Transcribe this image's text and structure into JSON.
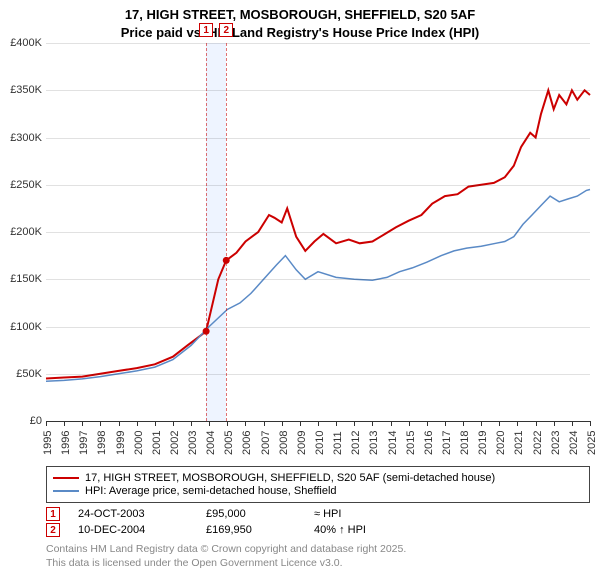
{
  "title_line1": "17, HIGH STREET, MOSBOROUGH, SHEFFIELD, S20 5AF",
  "title_line2": "Price paid vs. HM Land Registry's House Price Index (HPI)",
  "chart": {
    "type": "line",
    "x_min_year": 1995,
    "x_max_year": 2025,
    "ylim": [
      0,
      400000
    ],
    "ytick_step": 50000,
    "yticks": [
      "£0",
      "£50K",
      "£100K",
      "£150K",
      "£200K",
      "£250K",
      "£300K",
      "£350K",
      "£400K"
    ],
    "xticks": [
      1995,
      1996,
      1997,
      1998,
      1999,
      2000,
      2001,
      2002,
      2003,
      2004,
      2005,
      2006,
      2007,
      2008,
      2009,
      2010,
      2011,
      2012,
      2013,
      2014,
      2015,
      2016,
      2017,
      2018,
      2019,
      2020,
      2021,
      2022,
      2023,
      2024,
      2025
    ],
    "grid_color": "#333333",
    "background_color": "#ffffff",
    "shade_color": "#cfe0ff",
    "series": [
      {
        "name": "price_paid",
        "color": "#cc0000",
        "width": 2,
        "points": [
          [
            1995.0,
            45000
          ],
          [
            1996.0,
            46000
          ],
          [
            1997.0,
            47000
          ],
          [
            1998.0,
            50000
          ],
          [
            1999.0,
            53000
          ],
          [
            2000.0,
            56000
          ],
          [
            2001.0,
            60000
          ],
          [
            2002.0,
            68000
          ],
          [
            2002.8,
            80000
          ],
          [
            2003.5,
            90000
          ],
          [
            2003.83,
            95000
          ],
          [
            2004.5,
            150000
          ],
          [
            2004.94,
            169950
          ],
          [
            2005.5,
            178000
          ],
          [
            2006.0,
            190000
          ],
          [
            2006.7,
            200000
          ],
          [
            2007.3,
            218000
          ],
          [
            2007.6,
            215000
          ],
          [
            2008.0,
            210000
          ],
          [
            2008.3,
            225000
          ],
          [
            2008.8,
            195000
          ],
          [
            2009.3,
            180000
          ],
          [
            2009.8,
            190000
          ],
          [
            2010.3,
            198000
          ],
          [
            2011.0,
            188000
          ],
          [
            2011.7,
            192000
          ],
          [
            2012.3,
            188000
          ],
          [
            2013.0,
            190000
          ],
          [
            2013.7,
            198000
          ],
          [
            2014.3,
            205000
          ],
          [
            2015.0,
            212000
          ],
          [
            2015.7,
            218000
          ],
          [
            2016.3,
            230000
          ],
          [
            2017.0,
            238000
          ],
          [
            2017.7,
            240000
          ],
          [
            2018.3,
            248000
          ],
          [
            2019.0,
            250000
          ],
          [
            2019.7,
            252000
          ],
          [
            2020.3,
            258000
          ],
          [
            2020.8,
            270000
          ],
          [
            2021.2,
            290000
          ],
          [
            2021.7,
            305000
          ],
          [
            2022.0,
            300000
          ],
          [
            2022.3,
            325000
          ],
          [
            2022.7,
            350000
          ],
          [
            2023.0,
            330000
          ],
          [
            2023.3,
            345000
          ],
          [
            2023.7,
            335000
          ],
          [
            2024.0,
            350000
          ],
          [
            2024.3,
            340000
          ],
          [
            2024.7,
            350000
          ],
          [
            2025.0,
            345000
          ]
        ]
      },
      {
        "name": "hpi",
        "color": "#5a8ac6",
        "width": 1.5,
        "points": [
          [
            1995.0,
            42000
          ],
          [
            1996.0,
            43000
          ],
          [
            1997.0,
            44500
          ],
          [
            1998.0,
            47000
          ],
          [
            1999.0,
            50000
          ],
          [
            2000.0,
            53000
          ],
          [
            2001.0,
            57000
          ],
          [
            2002.0,
            65000
          ],
          [
            2003.0,
            80000
          ],
          [
            2004.0,
            100000
          ],
          [
            2005.0,
            118000
          ],
          [
            2005.7,
            125000
          ],
          [
            2006.3,
            135000
          ],
          [
            2007.0,
            150000
          ],
          [
            2007.7,
            165000
          ],
          [
            2008.2,
            175000
          ],
          [
            2008.8,
            160000
          ],
          [
            2009.3,
            150000
          ],
          [
            2010.0,
            158000
          ],
          [
            2011.0,
            152000
          ],
          [
            2012.0,
            150000
          ],
          [
            2013.0,
            149000
          ],
          [
            2013.8,
            152000
          ],
          [
            2014.5,
            158000
          ],
          [
            2015.2,
            162000
          ],
          [
            2016.0,
            168000
          ],
          [
            2016.8,
            175000
          ],
          [
            2017.5,
            180000
          ],
          [
            2018.2,
            183000
          ],
          [
            2019.0,
            185000
          ],
          [
            2019.8,
            188000
          ],
          [
            2020.3,
            190000
          ],
          [
            2020.8,
            195000
          ],
          [
            2021.3,
            208000
          ],
          [
            2021.8,
            218000
          ],
          [
            2022.3,
            228000
          ],
          [
            2022.8,
            238000
          ],
          [
            2023.3,
            232000
          ],
          [
            2023.8,
            235000
          ],
          [
            2024.3,
            238000
          ],
          [
            2024.8,
            244000
          ],
          [
            2025.0,
            245000
          ]
        ]
      }
    ],
    "markers": [
      {
        "n": "1",
        "year": 2003.83,
        "price": 95000
      },
      {
        "n": "2",
        "year": 2004.94,
        "price": 169950
      }
    ]
  },
  "legend": {
    "line1": "17, HIGH STREET, MOSBOROUGH, SHEFFIELD, S20 5AF (semi-detached house)",
    "line2": "HPI: Average price, semi-detached house, Sheffield",
    "color1": "#cc0000",
    "color2": "#5a8ac6"
  },
  "events": [
    {
      "n": "1",
      "date": "24-OCT-2003",
      "price": "£95,000",
      "delta": "≈ HPI"
    },
    {
      "n": "2",
      "date": "10-DEC-2004",
      "price": "£169,950",
      "delta": "40% ↑ HPI"
    }
  ],
  "credit_line1": "Contains HM Land Registry data © Crown copyright and database right 2025.",
  "credit_line2": "This data is licensed under the Open Government Licence v3.0."
}
